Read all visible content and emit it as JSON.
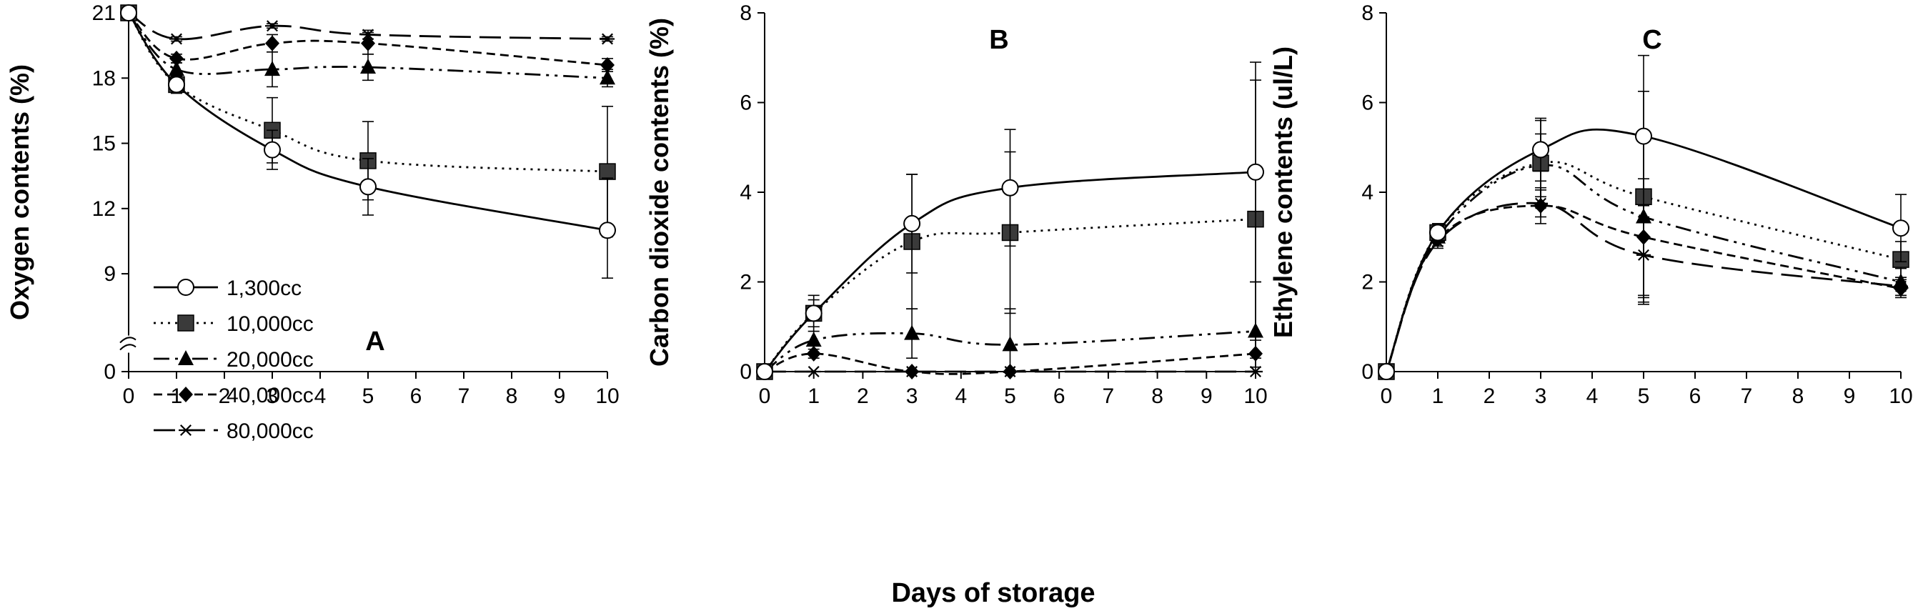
{
  "xlabel": "Days of storage",
  "legend": {
    "placement": "lower-left of panel A",
    "panel": 0
  },
  "styles": [
    {
      "marker": "circle-open",
      "dash": ""
    },
    {
      "marker": "square",
      "dash": "3 7"
    },
    {
      "marker": "triangle",
      "dash": "22 8 4 8 4 8"
    },
    {
      "marker": "diamond",
      "dash": "12 7"
    },
    {
      "marker": "star",
      "dash": "30 12"
    }
  ],
  "chart_data": [
    {
      "type": "line",
      "panel_label": "A",
      "ylabel": "Oxygen contents (%)",
      "x": [
        0,
        1,
        3,
        5,
        10
      ],
      "xticks": [
        0,
        1,
        2,
        3,
        4,
        5,
        6,
        7,
        8,
        9,
        10
      ],
      "xlim": [
        0,
        10
      ],
      "ylim": [
        0,
        21
      ],
      "yticks": [
        0,
        9,
        12,
        15,
        18,
        21
      ],
      "axis_break": "between 0 and 9",
      "grid": false,
      "series": [
        {
          "name": "1,300cc",
          "values": [
            21,
            17.7,
            14.7,
            13.0,
            11.0
          ],
          "errors": [
            0,
            0.4,
            0.9,
            1.3,
            2.4
          ]
        },
        {
          "name": "10,000cc",
          "values": [
            21,
            17.7,
            15.6,
            14.2,
            13.7
          ],
          "errors": [
            0,
            0.3,
            1.5,
            1.8,
            3.0
          ]
        },
        {
          "name": "20,000cc",
          "values": [
            21,
            18.4,
            18.4,
            18.5,
            18.0
          ],
          "errors": [
            0,
            0.3,
            0.8,
            0.6,
            0.4
          ]
        },
        {
          "name": "40,000cc",
          "values": [
            21,
            18.9,
            19.6,
            19.6,
            18.6
          ],
          "errors": [
            0,
            0.2,
            0.4,
            0.5,
            0.3
          ]
        },
        {
          "name": "80,000cc",
          "values": [
            21,
            19.8,
            20.4,
            20.0,
            19.8
          ],
          "errors": [
            0,
            0.1,
            0.1,
            0.2,
            0.1
          ]
        }
      ]
    },
    {
      "type": "line",
      "panel_label": "B",
      "ylabel": "Carbon dioxide contents (%)",
      "x": [
        0,
        1,
        3,
        5,
        10
      ],
      "xticks": [
        0,
        1,
        2,
        3,
        4,
        5,
        6,
        7,
        8,
        9,
        10
      ],
      "xlim": [
        0,
        10
      ],
      "ylim": [
        0,
        8
      ],
      "yticks": [
        0,
        2,
        4,
        6,
        8
      ],
      "grid": false,
      "series": [
        {
          "name": "1,300cc",
          "values": [
            0,
            1.3,
            3.3,
            4.1,
            4.45
          ],
          "errors": [
            0,
            0.4,
            1.1,
            1.3,
            2.45
          ]
        },
        {
          "name": "10,000cc",
          "values": [
            0,
            1.3,
            2.9,
            3.1,
            3.4
          ],
          "errors": [
            0,
            0.3,
            1.5,
            1.8,
            3.1
          ]
        },
        {
          "name": "20,000cc",
          "values": [
            0,
            0.7,
            0.85,
            0.6,
            0.9
          ],
          "errors": [
            0,
            0.3,
            0.55,
            0.8,
            1.1
          ]
        },
        {
          "name": "40,000cc",
          "values": [
            0,
            0.4,
            0.0,
            0.0,
            0.4
          ],
          "errors": [
            0,
            0.1,
            0,
            0,
            0.3
          ]
        },
        {
          "name": "80,000cc",
          "values": [
            0,
            0.0,
            0.0,
            0.0,
            0.0
          ],
          "errors": [
            0,
            0,
            0,
            0,
            0
          ]
        }
      ]
    },
    {
      "type": "line",
      "panel_label": "C",
      "ylabel": "Ethylene contents (ul/L)",
      "x": [
        0,
        1,
        3,
        5,
        10
      ],
      "xticks": [
        0,
        1,
        2,
        3,
        4,
        5,
        6,
        7,
        8,
        9,
        10
      ],
      "xlim": [
        0,
        10
      ],
      "ylim": [
        0,
        8
      ],
      "yticks": [
        0,
        2,
        4,
        6,
        8
      ],
      "grid": false,
      "series": [
        {
          "name": "1,300cc",
          "values": [
            0,
            3.1,
            4.95,
            5.25,
            3.2
          ],
          "errors": [
            0,
            0.2,
            0.7,
            1.8,
            0.75
          ]
        },
        {
          "name": "10,000cc",
          "values": [
            0,
            3.1,
            4.65,
            3.9,
            2.5
          ],
          "errors": [
            0,
            0.2,
            0.95,
            2.35,
            0.4
          ]
        },
        {
          "name": "20,000cc",
          "values": [
            0,
            3.0,
            4.6,
            3.45,
            2.0
          ],
          "errors": [
            0,
            0.2,
            0.7,
            1.8,
            0.3
          ]
        },
        {
          "name": "40,000cc",
          "values": [
            0,
            2.95,
            3.7,
            3.0,
            1.85
          ],
          "errors": [
            0,
            0.15,
            0.4,
            1.3,
            0.2
          ]
        },
        {
          "name": "80,000cc",
          "values": [
            0,
            2.9,
            3.75,
            2.6,
            1.9
          ],
          "errors": [
            0,
            0.15,
            0.3,
            1.1,
            0.2
          ]
        }
      ]
    }
  ]
}
